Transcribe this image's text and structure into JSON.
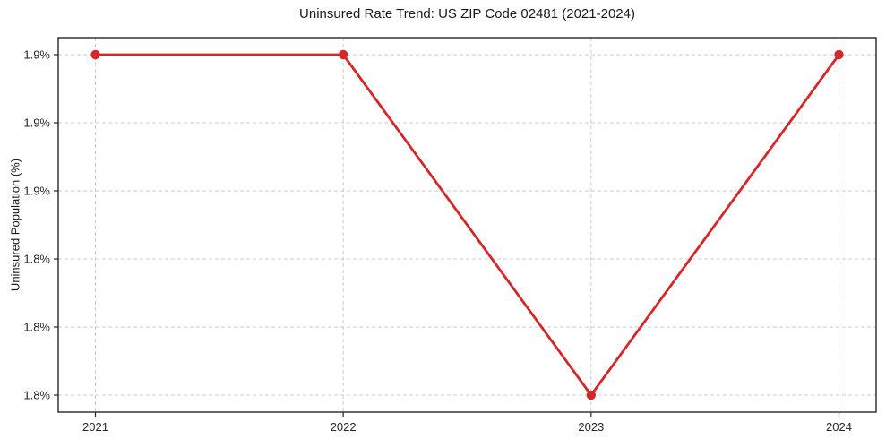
{
  "chart_data": {
    "type": "line",
    "title": "Uninsured Rate Trend: US ZIP Code 02481 (2021-2024)",
    "xlabel": "",
    "ylabel": "Uninsured Population (%)",
    "x": [
      2021,
      2022,
      2023,
      2024
    ],
    "values": [
      1.9,
      1.9,
      1.8,
      1.9
    ],
    "xlim": [
      2020.85,
      2024.15
    ],
    "ylim": [
      1.795,
      1.905
    ],
    "xticks": {
      "values": [
        2021,
        2022,
        2023,
        2024
      ],
      "labels": [
        "2021",
        "2022",
        "2023",
        "2024"
      ]
    },
    "yticks": {
      "values": [
        1.8,
        1.82,
        1.84,
        1.86,
        1.88,
        1.9
      ],
      "labels": [
        "1.8%",
        "1.8%",
        "1.8%",
        "1.9%",
        "1.9%",
        "1.9%"
      ]
    },
    "grid": true,
    "grid_style": "dashed",
    "legend": "none",
    "line_color": "#d62728",
    "marker": "circle",
    "grid_color": "#cccccc",
    "spine_color": "#262626",
    "background_color": "#ffffff"
  }
}
